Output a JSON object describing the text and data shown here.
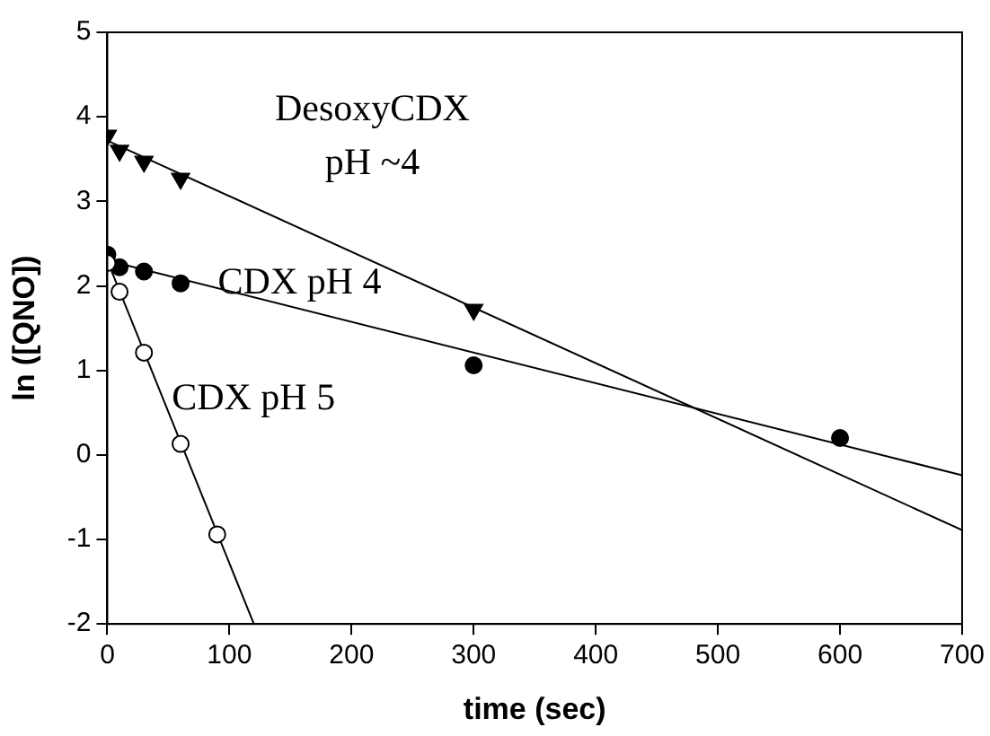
{
  "chart_data": {
    "type": "scatter",
    "xlabel": "time (sec)",
    "ylabel": "ln ([QNO])",
    "xlim": [
      0,
      700
    ],
    "ylim": [
      -2,
      5
    ],
    "xticks": [
      0,
      100,
      200,
      300,
      400,
      500,
      600,
      700
    ],
    "yticks": [
      -2,
      -1,
      0,
      1,
      2,
      3,
      4,
      5
    ],
    "grid": false,
    "legend": false,
    "series": [
      {
        "name": "DesoxyCDX\npH ~4",
        "marker": "triangle",
        "color": "#000000",
        "x": [
          0,
          10,
          30,
          60,
          300
        ],
        "values": [
          3.78,
          3.6,
          3.47,
          3.27,
          1.72
        ]
      },
      {
        "name": "CDX pH 4",
        "marker": "circle",
        "color": "#000000",
        "x": [
          0,
          10,
          30,
          60,
          300,
          600
        ],
        "values": [
          2.37,
          2.22,
          2.17,
          2.03,
          1.06,
          0.2
        ]
      },
      {
        "name": "CDX pH 5",
        "marker": "circle",
        "color": "#ffffff",
        "x": [
          0,
          10,
          30,
          60,
          90
        ],
        "values": [
          2.27,
          1.93,
          1.21,
          0.13,
          -0.94
        ]
      },
      {
        "type": "line",
        "marker": "none",
        "color": "#000000",
        "x": [
          0,
          700
        ],
        "values": [
          3.72,
          -0.89
        ]
      },
      {
        "type": "line",
        "marker": "none",
        "color": "#000000",
        "x": [
          0,
          700
        ],
        "values": [
          2.3,
          -0.24
        ]
      },
      {
        "type": "line",
        "marker": "none",
        "color": "#000000",
        "x": [
          0,
          120
        ],
        "values": [
          2.3,
          -2
        ]
      }
    ]
  }
}
